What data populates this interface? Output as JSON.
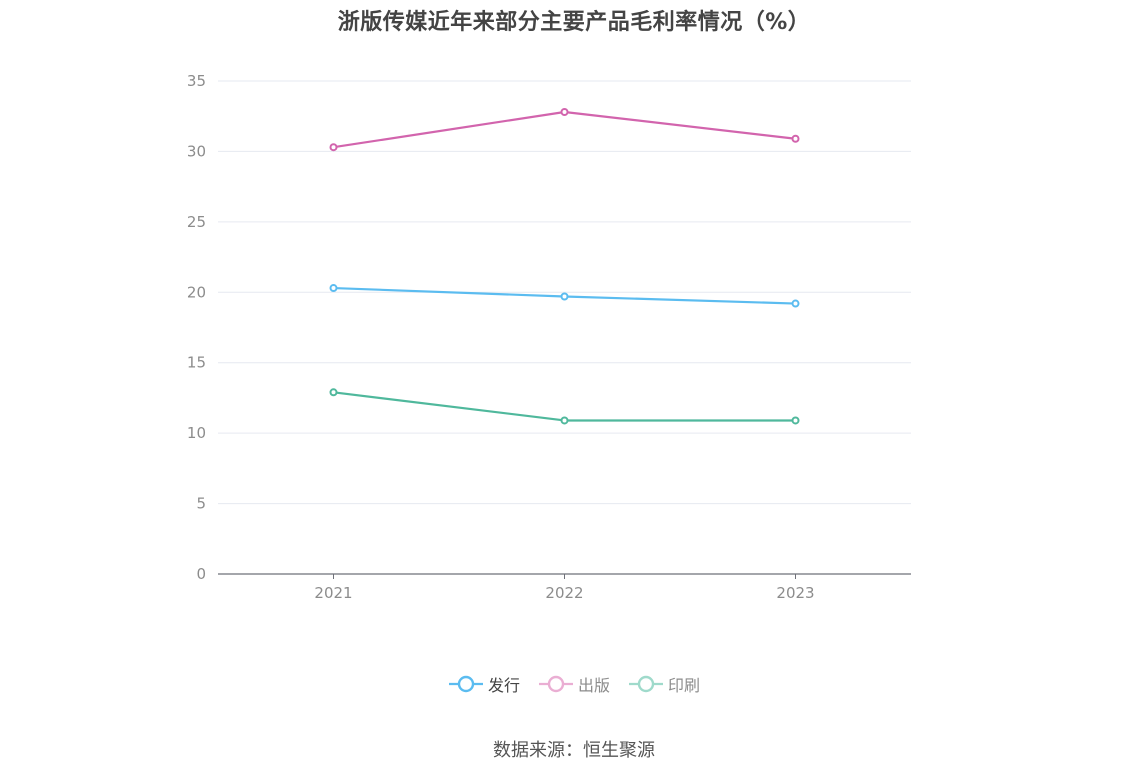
{
  "chart_data": {
    "type": "line",
    "title": "浙版传媒近年来部分主要产品毛利率情况（%）",
    "categories": [
      "2021",
      "2022",
      "2023"
    ],
    "ylim": [
      0,
      35
    ],
    "yticks": [
      0,
      5,
      10,
      15,
      20,
      25,
      30,
      35
    ],
    "grid": true,
    "legend_position": "bottom-center",
    "series": [
      {
        "name": "发行",
        "values": [
          20.3,
          19.7,
          19.2
        ],
        "color": "#5bbcf0",
        "legend_color": "#5bbcf0",
        "legend_text_color": "#444444"
      },
      {
        "name": "出版",
        "values": [
          30.3,
          32.8,
          30.9
        ],
        "color": "#d264ad",
        "legend_color": "#eaaed3",
        "legend_text_color": "#8c8c8c"
      },
      {
        "name": "印刷",
        "values": [
          12.9,
          10.9,
          10.9
        ],
        "color": "#4fb89c",
        "legend_color": "#9fdacb",
        "legend_text_color": "#8c8c8c"
      }
    ]
  },
  "source_text": "数据来源：恒生聚源",
  "colors": {
    "grid": "#e6e9f0",
    "axis": "#6e7079",
    "tick_text": "#8c8c8c",
    "title": "#444444"
  }
}
